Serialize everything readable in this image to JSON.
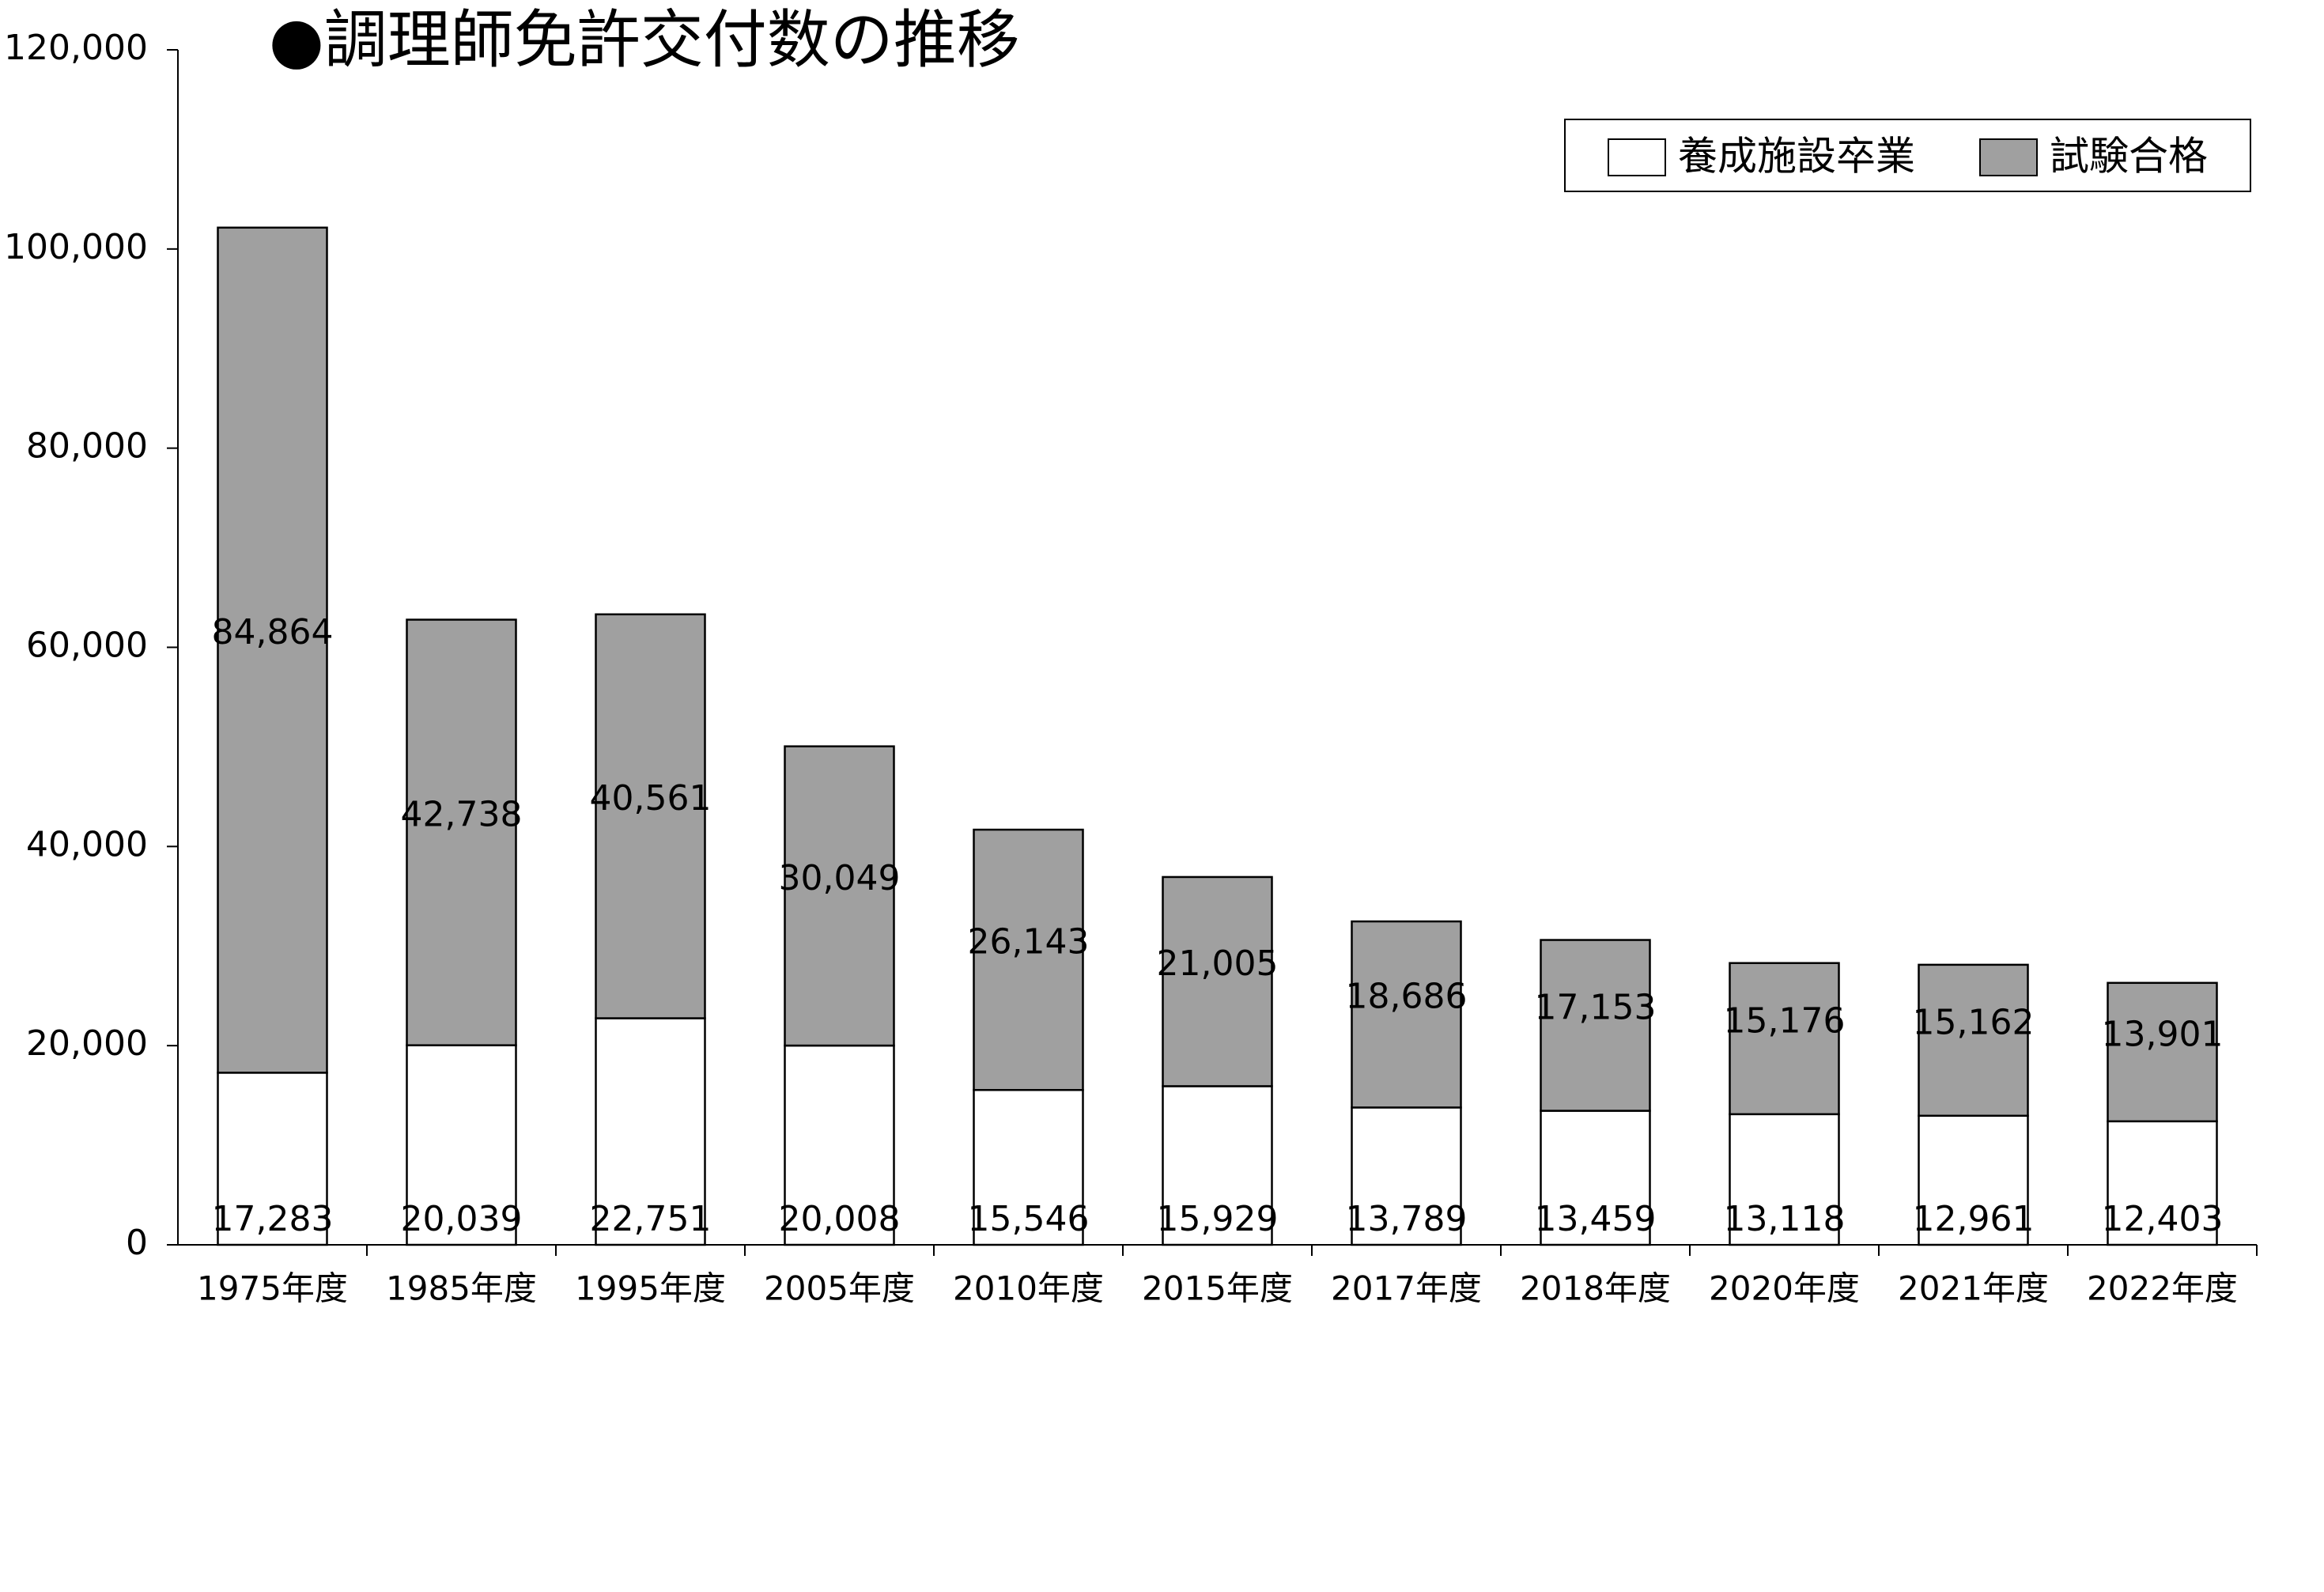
{
  "chart_data": {
    "type": "stacked-bar",
    "title": "●調理師免許交付数の推移",
    "categories": [
      "1975年度",
      "1985年度",
      "1995年度",
      "2005年度",
      "2010年度",
      "2015年度",
      "2017年度",
      "2018年度",
      "2020年度",
      "2021年度",
      "2022年度"
    ],
    "series": [
      {
        "name": "養成施設卒業",
        "color": "#ffffff",
        "values": [
          17283,
          20039,
          22751,
          20008,
          15546,
          15929,
          13789,
          13459,
          13118,
          12961,
          12403
        ],
        "value_labels": [
          "17,283",
          "20,039",
          "22,751",
          "20,008",
          "15,546",
          "15,929",
          "13,789",
          "13,459",
          "13,118",
          "12,961",
          "12,403"
        ]
      },
      {
        "name": "試験合格",
        "color": "#a0a0a0",
        "values": [
          84864,
          42738,
          40561,
          30049,
          26143,
          21005,
          18686,
          17153,
          15176,
          15162,
          13901
        ],
        "value_labels": [
          "84,864",
          "42,738",
          "40,561",
          "30,049",
          "26,143",
          "21,005",
          "18,686",
          "17,153",
          "15,176",
          "15,162",
          "13,901"
        ]
      }
    ],
    "ylim": [
      0,
      120000
    ],
    "yticks": [
      0,
      {
        "value": 20000,
        "label": "20,000"
      },
      {
        "value": 40000,
        "label": "40,000"
      },
      {
        "value": 60000,
        "label": "60,000"
      },
      {
        "value": 80000,
        "label": "80,000"
      },
      {
        "value": 100000,
        "label": "100,000"
      },
      {
        "value": 120000,
        "label": "120,000"
      }
    ],
    "legend": "top-right",
    "grid": false
  }
}
